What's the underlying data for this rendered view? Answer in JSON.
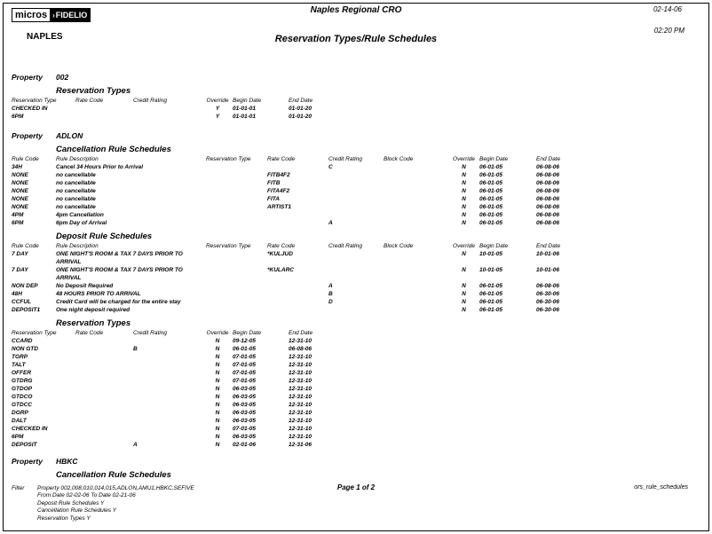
{
  "header": {
    "logo_micros": "micros",
    "logo_fidelio": "FIDELIO",
    "office": "NAPLES",
    "cro_name": "Naples Regional CRO",
    "report_title": "Reservation Types/Rule Schedules",
    "date": "02-14-06",
    "time": "02:20 PM"
  },
  "labels": {
    "property": "Property"
  },
  "res_type_columns": [
    "Reservation Type",
    "Rate Code",
    "Credit Rating",
    "Override",
    "Begin Date",
    "End Date"
  ],
  "rule_columns": [
    "Rule Code",
    "Rule Description",
    "Reservation Type",
    "Rate Code",
    "Credit Rating",
    "Block Code",
    "Override",
    "Begin Date",
    "End Date"
  ],
  "sections": [
    {
      "property": "002",
      "blocks": [
        {
          "title": "Reservation Types",
          "kind": "res",
          "rows": [
            [
              "CHECKED IN",
              "",
              "",
              "Y",
              "01-01-01",
              "01-01-20"
            ],
            [
              "6PM",
              "",
              "",
              "Y",
              "01-01-01",
              "01-01-20"
            ]
          ]
        }
      ]
    },
    {
      "property": "ADLON",
      "blocks": [
        {
          "title": "Cancellation Rule Schedules",
          "kind": "rule",
          "rows": [
            [
              "34H",
              "Cancel 34 Hours Prior to Arrival",
              "",
              "",
              "C",
              "",
              "N",
              "06-01-05",
              "06-08-06"
            ],
            [
              "NONE",
              "no cancellable",
              "",
              "FITB4F2",
              "",
              "",
              "N",
              "06-01-05",
              "06-08-06"
            ],
            [
              "NONE",
              "no cancellable",
              "",
              "FITB",
              "",
              "",
              "N",
              "06-01-05",
              "06-08-06"
            ],
            [
              "NONE",
              "no cancellable",
              "",
              "FITA4F2",
              "",
              "",
              "N",
              "06-01-05",
              "06-08-06"
            ],
            [
              "NONE",
              "no cancellable",
              "",
              "FITA",
              "",
              "",
              "N",
              "06-01-05",
              "06-08-06"
            ],
            [
              "NONE",
              "no cancellable",
              "",
              "ARTIST1",
              "",
              "",
              "N",
              "06-01-05",
              "06-08-06"
            ],
            [
              "4PM",
              "4pm Cancellation",
              "",
              "",
              "",
              "",
              "N",
              "06-01-05",
              "06-08-06"
            ],
            [
              "6PM",
              "6pm Day of Arrival",
              "",
              "",
              "A",
              "",
              "N",
              "06-01-05",
              "06-08-06"
            ]
          ]
        },
        {
          "title": "Deposit Rule Schedules",
          "kind": "rule",
          "rows": [
            [
              "7 DAY",
              "ONE NIGHT'S ROOM & TAX 7 DAYS PRIOR TO ARRIVAL",
              "",
              "*KULJUD",
              "",
              "",
              "N",
              "10-01-05",
              "10-01-06"
            ],
            [
              "7 DAY",
              "ONE NIGHT'S ROOM & TAX 7 DAYS PRIOR TO ARRIVAL",
              "",
              "*KULARC",
              "",
              "",
              "N",
              "10-01-05",
              "10-01-06"
            ],
            [
              "NON DEP",
              "No Deposit Required",
              "",
              "",
              "A",
              "",
              "N",
              "06-01-05",
              "06-08-06"
            ],
            [
              "48H",
              "48 HOURS PRIOR TO ARRIVAL",
              "",
              "",
              "B",
              "",
              "N",
              "06-01-05",
              "06-30-06"
            ],
            [
              "CCFUL",
              "Credit Card will be charged for the entire stay",
              "",
              "",
              "D",
              "",
              "N",
              "06-01-05",
              "06-30-06"
            ],
            [
              "DEPOSIT1",
              "One night deposit required",
              "",
              "",
              "",
              "",
              "N",
              "06-01-05",
              "06-30-06"
            ]
          ]
        },
        {
          "title": "Reservation Types",
          "kind": "res",
          "rows": [
            [
              "CCARD",
              "",
              "",
              "N",
              "09-12-05",
              "12-31-10"
            ],
            [
              "NON GTD",
              "",
              "B",
              "N",
              "06-01-05",
              "06-08-06"
            ],
            [
              "TGRP",
              "",
              "",
              "N",
              "07-01-05",
              "12-31-10"
            ],
            [
              "TALT",
              "",
              "",
              "N",
              "07-01-05",
              "12-31-10"
            ],
            [
              "OFFER",
              "",
              "",
              "N",
              "07-01-05",
              "12-31-10"
            ],
            [
              "GTDRG",
              "",
              "",
              "N",
              "07-01-05",
              "12-31-10"
            ],
            [
              "GTDOP",
              "",
              "",
              "N",
              "06-03-05",
              "12-31-10"
            ],
            [
              "GTDCO",
              "",
              "",
              "N",
              "06-03-05",
              "12-31-10"
            ],
            [
              "GTDCC",
              "",
              "",
              "N",
              "06-03-05",
              "12-31-10"
            ],
            [
              "DGRP",
              "",
              "",
              "N",
              "06-03-05",
              "12-31-10"
            ],
            [
              "DALT",
              "",
              "",
              "N",
              "06-03-05",
              "12-31-10"
            ],
            [
              "CHECKED IN",
              "",
              "",
              "N",
              "07-01-05",
              "12-31-10"
            ],
            [
              "6PM",
              "",
              "",
              "N",
              "06-03-05",
              "12-31-10"
            ],
            [
              "DEPOSIT",
              "",
              "A",
              "N",
              "02-01-06",
              "12-31-06"
            ]
          ]
        }
      ]
    },
    {
      "property": "HBKC",
      "blocks": [
        {
          "title": "Cancellation Rule Schedules",
          "kind": "none",
          "rows": []
        }
      ]
    }
  ],
  "footer": {
    "filter_label": "Filter",
    "filter_lines": [
      "Property 002,008,010,014,015,ADLON,AMU1,HBKC,SEFIVE",
      "From Date 02-02-06  To Date  02-21-06",
      "Deposit Rule Schedules Y",
      "Cancellation Rule Schedules Y",
      "Reservation Types Y"
    ],
    "page_info": "Page 1 of 2",
    "report_id": "ors_rule_schedules"
  }
}
